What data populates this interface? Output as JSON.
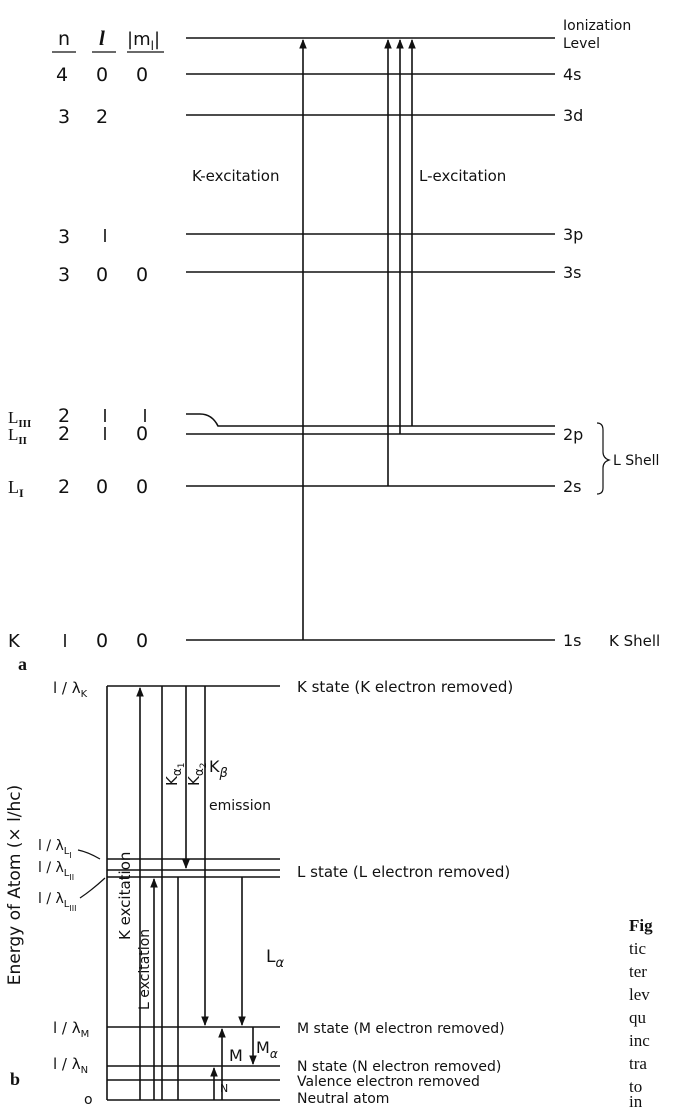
{
  "panel_a": {
    "label": "a",
    "headers": {
      "n": "n",
      "l": "l",
      "ml": "|m",
      "ml_sub": "l",
      "ml_end": "|"
    },
    "rows": [
      {
        "n": "4",
        "l": "0",
        "ml": "0",
        "orbital": "4s"
      },
      {
        "n": "3",
        "l": "2",
        "ml": "",
        "orbital": "3d"
      },
      {
        "n": "3",
        "l": "1",
        "ml": "",
        "orbital": "3p"
      },
      {
        "n": "3",
        "l": "0",
        "ml": "0",
        "orbital": "3s"
      },
      {
        "n": "2",
        "l": "1",
        "ml": "1",
        "orbital": "",
        "shell_sym": "L",
        "shell_sub": "III"
      },
      {
        "n": "2",
        "l": "1",
        "ml": "0",
        "orbital": "2p",
        "shell_sym": "L",
        "shell_sub": "II"
      },
      {
        "n": "2",
        "l": "0",
        "ml": "0",
        "orbital": "2s",
        "shell_sym": "L",
        "shell_sub": "I"
      },
      {
        "n": "1",
        "l": "0",
        "ml": "0",
        "orbital": "1s",
        "shell_sym": "K"
      }
    ],
    "ionization_line1": "Ionization",
    "ionization_line2": "Level",
    "k_excitation": "K-excitation",
    "l_excitation": "L-excitation",
    "l_shell": "L Shell",
    "k_shell": "K Shell"
  },
  "panel_b": {
    "label": "b",
    "ylabel": "Energy of Atom (× l/hc)",
    "ticks": {
      "k": "l / λ",
      "k_sub": "K",
      "l1": "l / λ",
      "l1_sub": "L",
      "l1_subsub": "I",
      "l2": "l / λ",
      "l2_sub": "L",
      "l2_subsub": "II",
      "l3": "l / λ",
      "l3_sub": "L",
      "l3_subsub": "III",
      "m": "l / λ",
      "m_sub": "M",
      "n": "l / λ",
      "n_sub": "N",
      "zero": "o"
    },
    "states": {
      "k": "K state (K electron removed)",
      "l": "L state (L electron removed)",
      "m": "M state (M electron removed)",
      "n": "N state (N electron removed)",
      "valence": "Valence electron removed",
      "neutral": "Neutral atom"
    },
    "k_excitation": "K excitation",
    "l_excitation": "L excitation",
    "ka1": "K",
    "ka1_sub": "α",
    "ka1_subsub": "1",
    "ka2": "K",
    "ka2_sub": "α",
    "ka2_subsub": "2",
    "kb": "K",
    "kb_sub": "β",
    "emission": "emission",
    "la": "L",
    "la_sub": "α",
    "m_label": "M",
    "ma": "M",
    "ma_sub": "α",
    "n_label": "N"
  },
  "caption": {
    "fig": "Fig",
    "lines": [
      "tic",
      "ter",
      "lev",
      "qu",
      "inc",
      "tra",
      "to",
      "in"
    ]
  }
}
